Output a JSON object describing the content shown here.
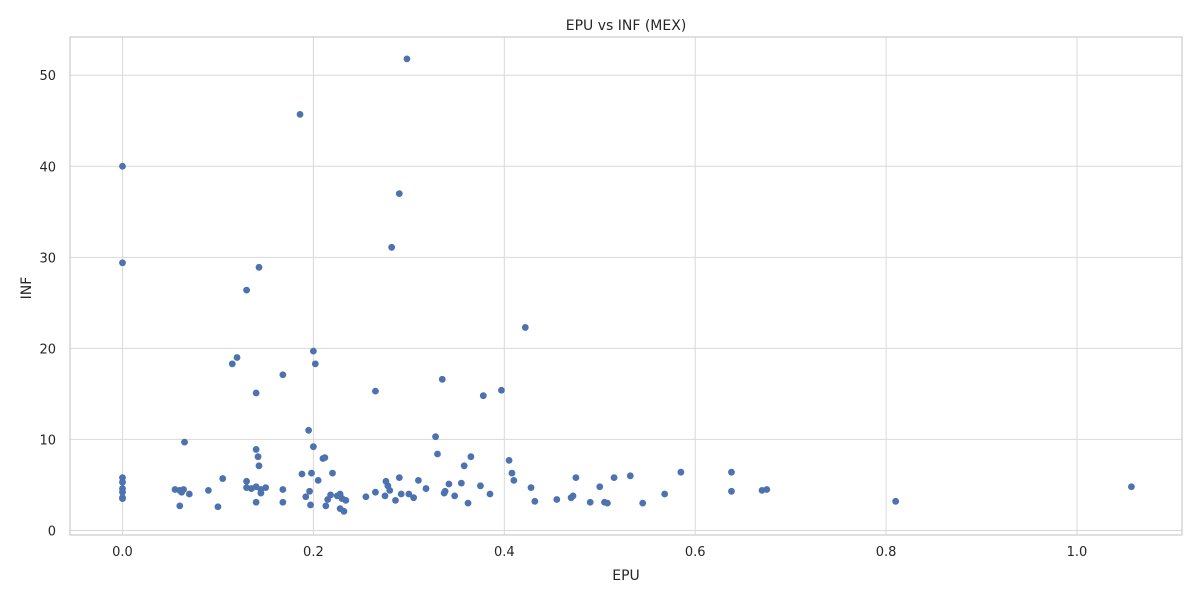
{
  "chart_data": {
    "type": "scatter",
    "title": "EPU vs INF (MEX)",
    "xlabel": "EPU",
    "ylabel": "INF",
    "xlim": [
      -0.055,
      1.11
    ],
    "ylim": [
      -0.5,
      54.2
    ],
    "xticks": [
      0.0,
      0.2,
      0.4,
      0.6,
      0.8,
      1.0
    ],
    "xtick_labels": [
      "0.0",
      "0.2",
      "0.4",
      "0.6",
      "0.8",
      "1.0"
    ],
    "yticks": [
      0,
      10,
      20,
      30,
      40,
      50
    ],
    "ytick_labels": [
      "0",
      "10",
      "20",
      "30",
      "40",
      "50"
    ],
    "grid": true,
    "marker_color": "#4c72b0",
    "points": [
      [
        0.0,
        40.0
      ],
      [
        0.0,
        29.4
      ],
      [
        0.0,
        5.8
      ],
      [
        0.0,
        5.3
      ],
      [
        0.0,
        4.6
      ],
      [
        0.0,
        4.2
      ],
      [
        0.0,
        3.6
      ],
      [
        0.0,
        3.5
      ],
      [
        0.055,
        4.5
      ],
      [
        0.06,
        4.4
      ],
      [
        0.062,
        4.2
      ],
      [
        0.064,
        4.5
      ],
      [
        0.06,
        2.7
      ],
      [
        0.065,
        9.7
      ],
      [
        0.07,
        4.0
      ],
      [
        0.09,
        4.4
      ],
      [
        0.1,
        2.6
      ],
      [
        0.105,
        5.7
      ],
      [
        0.115,
        18.3
      ],
      [
        0.12,
        19.0
      ],
      [
        0.13,
        26.4
      ],
      [
        0.13,
        5.4
      ],
      [
        0.13,
        4.7
      ],
      [
        0.135,
        4.6
      ],
      [
        0.14,
        8.9
      ],
      [
        0.14,
        15.1
      ],
      [
        0.142,
        8.1
      ],
      [
        0.143,
        7.1
      ],
      [
        0.143,
        28.9
      ],
      [
        0.14,
        4.8
      ],
      [
        0.145,
        4.5
      ],
      [
        0.14,
        3.1
      ],
      [
        0.15,
        4.7
      ],
      [
        0.145,
        4.1
      ],
      [
        0.168,
        17.1
      ],
      [
        0.168,
        4.5
      ],
      [
        0.168,
        3.1
      ],
      [
        0.186,
        45.7
      ],
      [
        0.188,
        6.2
      ],
      [
        0.192,
        3.7
      ],
      [
        0.195,
        11.0
      ],
      [
        0.196,
        4.3
      ],
      [
        0.198,
        6.3
      ],
      [
        0.197,
        2.8
      ],
      [
        0.2,
        19.7
      ],
      [
        0.2,
        9.2
      ],
      [
        0.202,
        18.3
      ],
      [
        0.205,
        5.5
      ],
      [
        0.21,
        7.9
      ],
      [
        0.212,
        8.0
      ],
      [
        0.213,
        2.7
      ],
      [
        0.215,
        3.4
      ],
      [
        0.218,
        3.9
      ],
      [
        0.22,
        6.3
      ],
      [
        0.225,
        3.8
      ],
      [
        0.228,
        4.0
      ],
      [
        0.228,
        2.4
      ],
      [
        0.23,
        3.5
      ],
      [
        0.232,
        2.1
      ],
      [
        0.234,
        3.3
      ],
      [
        0.255,
        3.7
      ],
      [
        0.265,
        15.3
      ],
      [
        0.265,
        4.2
      ],
      [
        0.275,
        3.8
      ],
      [
        0.276,
        5.4
      ],
      [
        0.278,
        4.9
      ],
      [
        0.28,
        4.4
      ],
      [
        0.282,
        31.1
      ],
      [
        0.286,
        3.3
      ],
      [
        0.29,
        37.0
      ],
      [
        0.29,
        5.8
      ],
      [
        0.292,
        4.0
      ],
      [
        0.298,
        51.8
      ],
      [
        0.3,
        4.0
      ],
      [
        0.305,
        3.6
      ],
      [
        0.31,
        5.5
      ],
      [
        0.318,
        4.6
      ],
      [
        0.328,
        10.3
      ],
      [
        0.33,
        8.4
      ],
      [
        0.335,
        16.6
      ],
      [
        0.337,
        4.1
      ],
      [
        0.338,
        4.3
      ],
      [
        0.342,
        5.1
      ],
      [
        0.348,
        3.8
      ],
      [
        0.355,
        5.2
      ],
      [
        0.358,
        7.1
      ],
      [
        0.362,
        3.0
      ],
      [
        0.365,
        8.1
      ],
      [
        0.375,
        4.9
      ],
      [
        0.378,
        14.8
      ],
      [
        0.385,
        4.0
      ],
      [
        0.397,
        15.4
      ],
      [
        0.405,
        7.7
      ],
      [
        0.408,
        6.3
      ],
      [
        0.41,
        5.5
      ],
      [
        0.422,
        22.3
      ],
      [
        0.428,
        4.7
      ],
      [
        0.432,
        3.2
      ],
      [
        0.455,
        3.4
      ],
      [
        0.47,
        3.6
      ],
      [
        0.472,
        3.8
      ],
      [
        0.475,
        5.8
      ],
      [
        0.49,
        3.1
      ],
      [
        0.5,
        4.8
      ],
      [
        0.505,
        3.1
      ],
      [
        0.508,
        3.0
      ],
      [
        0.515,
        5.8
      ],
      [
        0.532,
        6.0
      ],
      [
        0.545,
        3.0
      ],
      [
        0.568,
        4.0
      ],
      [
        0.585,
        6.4
      ],
      [
        0.638,
        6.4
      ],
      [
        0.638,
        4.3
      ],
      [
        0.67,
        4.4
      ],
      [
        0.675,
        4.5
      ],
      [
        0.81,
        3.2
      ],
      [
        1.057,
        4.8
      ]
    ]
  }
}
